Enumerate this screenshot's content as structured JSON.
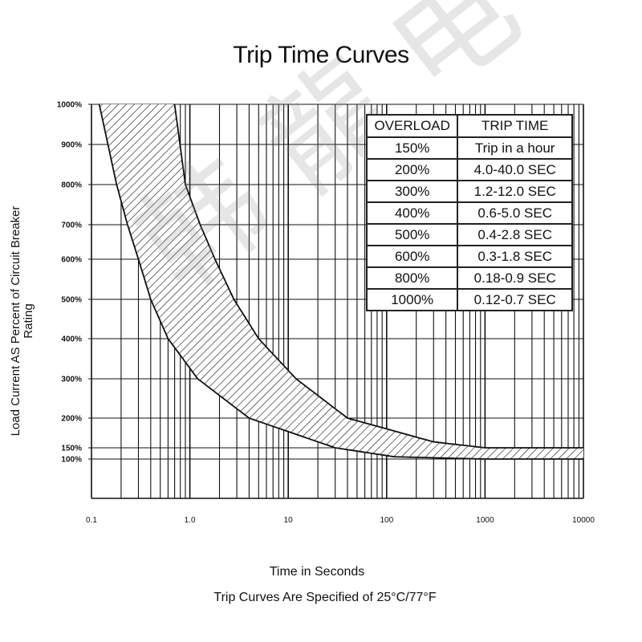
{
  "chart_data": {
    "type": "area",
    "title": "Trip Time Curves",
    "xlabel": "Time in Seconds",
    "ylabel": "Load Current AS Percent of Circuit Breaker Rating",
    "caption": "Trip Curves Are Specified of 25°C/77°F",
    "x_scale": "log",
    "xlim": [
      0.1,
      10000
    ],
    "x_ticks": [
      "0.1",
      "1.0",
      "10",
      "100",
      "1000",
      "10000"
    ],
    "ylim": [
      0,
      1000
    ],
    "y_ticks": [
      {
        "value": 1000,
        "label": "1000%"
      },
      {
        "value": 900,
        "label": "900%"
      },
      {
        "value": 800,
        "label": "800%"
      },
      {
        "value": 700,
        "label": "700%"
      },
      {
        "value": 600,
        "label": "600%"
      },
      {
        "value": 500,
        "label": "500%"
      },
      {
        "value": 400,
        "label": "400%"
      },
      {
        "value": 300,
        "label": "300%"
      },
      {
        "value": 200,
        "label": "200%"
      },
      {
        "value": 150,
        "label": "150%"
      },
      {
        "value": 100,
        "label": "100%"
      }
    ],
    "band": {
      "name": "Trip band (hatched)",
      "lower_curve": [
        {
          "x": 0.12,
          "y": 1000
        },
        {
          "x": 0.18,
          "y": 800
        },
        {
          "x": 0.3,
          "y": 600
        },
        {
          "x": 0.4,
          "y": 500
        },
        {
          "x": 0.6,
          "y": 400
        },
        {
          "x": 1.2,
          "y": 300
        },
        {
          "x": 4.0,
          "y": 200
        },
        {
          "x": 30,
          "y": 150
        },
        {
          "x": 120,
          "y": 110
        },
        {
          "x": 1000,
          "y": 100
        },
        {
          "x": 10000,
          "y": 100
        }
      ],
      "upper_curve": [
        {
          "x": 0.7,
          "y": 1000
        },
        {
          "x": 0.9,
          "y": 800
        },
        {
          "x": 1.8,
          "y": 600
        },
        {
          "x": 2.8,
          "y": 500
        },
        {
          "x": 5.0,
          "y": 400
        },
        {
          "x": 12.0,
          "y": 300
        },
        {
          "x": 40.0,
          "y": 200
        },
        {
          "x": 300,
          "y": 160
        },
        {
          "x": 1000,
          "y": 150
        },
        {
          "x": 10000,
          "y": 150
        }
      ]
    },
    "table": {
      "headers": [
        "OVERLOAD",
        "TRIP TIME"
      ],
      "rows": [
        [
          "150%",
          "Trip in a hour"
        ],
        [
          "200%",
          "4.0-40.0 SEC"
        ],
        [
          "300%",
          "1.2-12.0 SEC"
        ],
        [
          "400%",
          "0.6-5.0 SEC"
        ],
        [
          "500%",
          "0.4-2.8 SEC"
        ],
        [
          "600%",
          "0.3-1.8 SEC"
        ],
        [
          "800%",
          "0.18-0.9 SEC"
        ],
        [
          "1000%",
          "0.12-0.7 SEC"
        ]
      ]
    }
  },
  "watermark": "韩 龍 电 子",
  "colors": {
    "line": "#111111",
    "background": "#ffffff"
  }
}
